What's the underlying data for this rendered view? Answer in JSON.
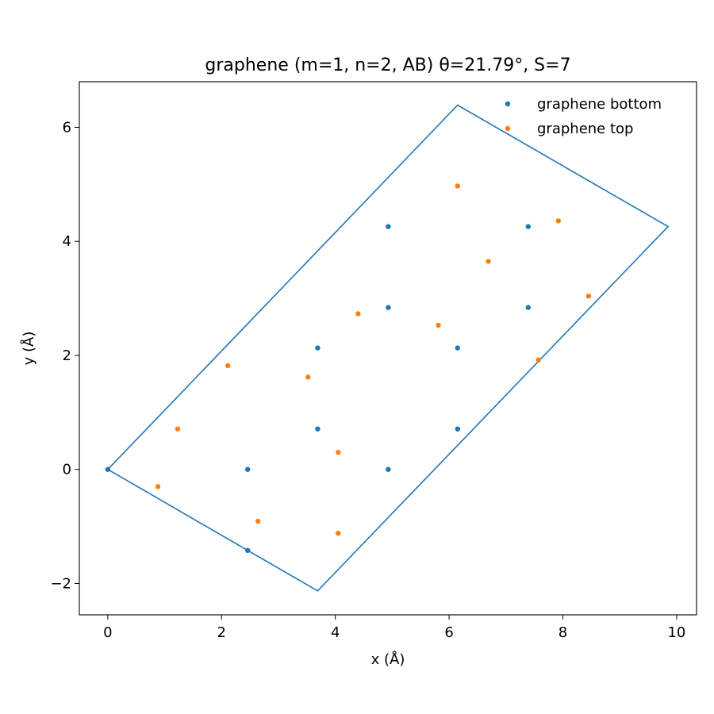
{
  "chart_data": {
    "type": "scatter",
    "title": "graphene (m=1, n=2, AB)  θ=21.79°, S=7",
    "xlabel": "x (Å)",
    "ylabel": "y (Å)",
    "xlim": [
      -0.5,
      10.35
    ],
    "ylim": [
      -2.55,
      6.8
    ],
    "xticks": [
      0,
      2,
      4,
      6,
      8,
      10
    ],
    "xtick_labels": [
      "0",
      "2",
      "4",
      "6",
      "8",
      "10"
    ],
    "yticks": [
      -2,
      0,
      2,
      4,
      6
    ],
    "ytick_labels": [
      "−2",
      "0",
      "2",
      "4",
      "6"
    ],
    "grid": false,
    "legend": {
      "placement": "top-right",
      "frame": false
    },
    "cell": {
      "color": "#1f77b4",
      "vertices": [
        [
          0,
          0
        ],
        [
          6.15,
          6.39
        ],
        [
          9.85,
          4.26
        ],
        [
          3.69,
          -2.13
        ]
      ]
    },
    "series": [
      {
        "name": "graphene bottom",
        "color": "#1f77b4",
        "points": [
          [
            0,
            0
          ],
          [
            2.46,
            0
          ],
          [
            4.93,
            0
          ],
          [
            2.46,
            -1.42
          ],
          [
            3.69,
            0.71
          ],
          [
            6.15,
            0.71
          ],
          [
            3.69,
            2.13
          ],
          [
            6.15,
            2.13
          ],
          [
            4.93,
            2.84
          ],
          [
            7.39,
            2.84
          ],
          [
            4.93,
            4.26
          ],
          [
            7.39,
            4.26
          ]
        ]
      },
      {
        "name": "graphene top",
        "color": "#ff7f0e",
        "points": [
          [
            0.88,
            -0.3
          ],
          [
            1.23,
            0.71
          ],
          [
            2.64,
            -0.91
          ],
          [
            2.11,
            1.82
          ],
          [
            3.52,
            1.62
          ],
          [
            4.05,
            0.3
          ],
          [
            4.05,
            -1.12
          ],
          [
            4.4,
            2.73
          ],
          [
            5.81,
            2.53
          ],
          [
            6.15,
            4.97
          ],
          [
            6.69,
            3.65
          ],
          [
            7.57,
            1.92
          ],
          [
            7.92,
            4.36
          ],
          [
            8.45,
            3.04
          ]
        ]
      }
    ]
  }
}
